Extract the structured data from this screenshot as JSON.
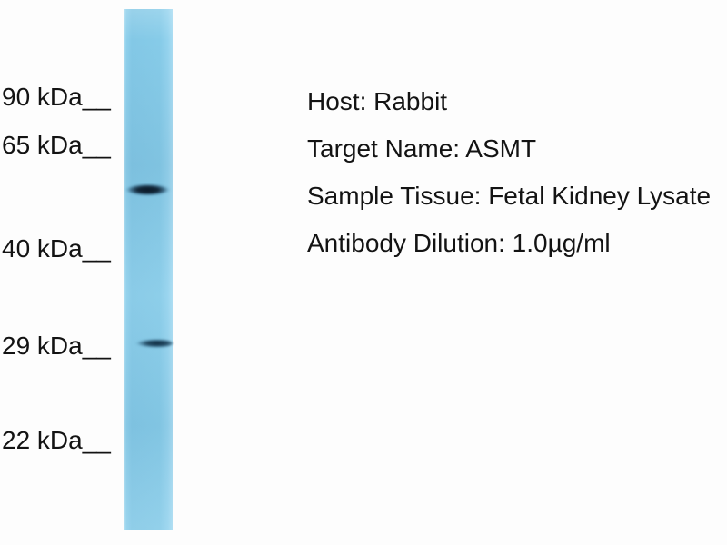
{
  "figure": {
    "type": "western-blot",
    "colors": {
      "background": "#fdfdfd",
      "lane_blue": "#86cbe8",
      "band_dark": "#0a1f33",
      "text": "#131313"
    },
    "markers": [
      {
        "label": "90 kDa__",
        "kda": 90
      },
      {
        "label": "65 kDa__",
        "kda": 65
      },
      {
        "label": "40 kDa__",
        "kda": 40
      },
      {
        "label": "29 kDa__",
        "kda": 29
      },
      {
        "label": "22 kDa__",
        "kda": 22
      }
    ],
    "bands": [
      {
        "name": "upper-band",
        "position": "between 65 kDa and 40 kDa markers"
      },
      {
        "name": "lower-band",
        "position": "at 29 kDa marker"
      }
    ],
    "annotations": [
      "Host: Rabbit",
      "Target Name: ASMT",
      "Sample Tissue: Fetal Kidney Lysate",
      "Antibody Dilution: 1.0µg/ml"
    ]
  }
}
